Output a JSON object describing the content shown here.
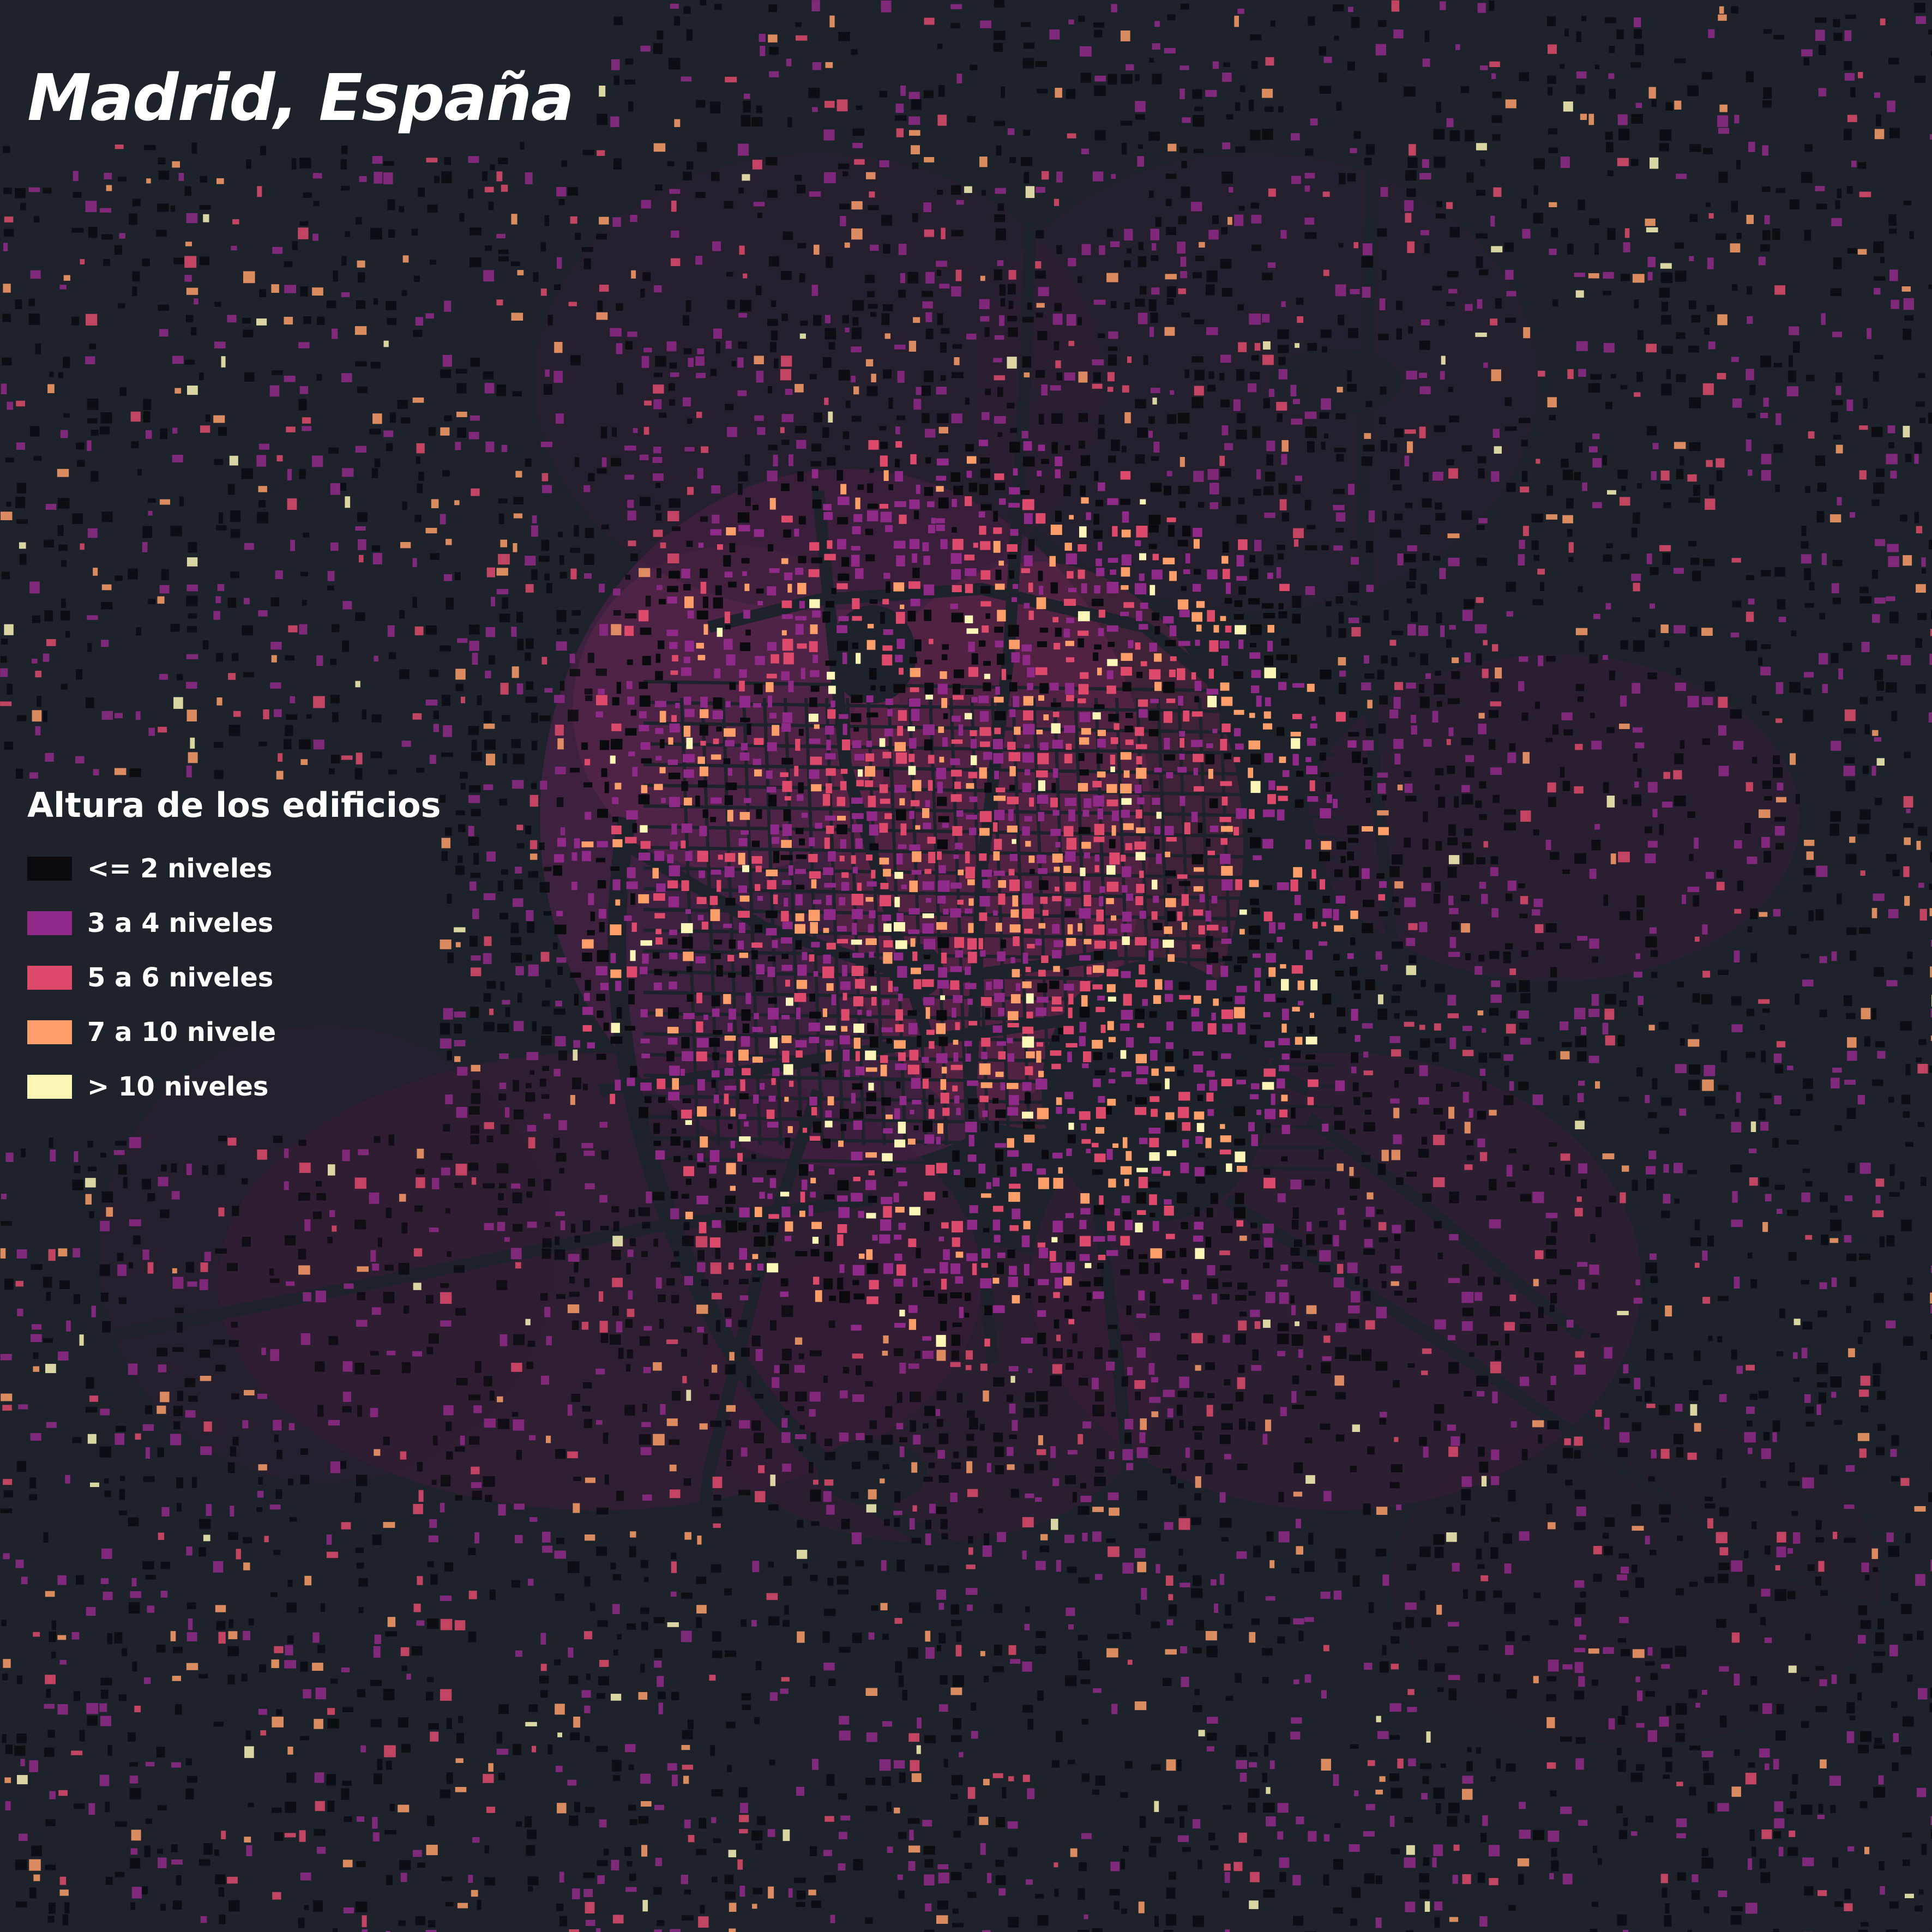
{
  "map": {
    "title": "Madrid, España",
    "background_color": "#1e222a",
    "legend": {
      "title": "Altura de los edificios",
      "items": [
        {
          "label": "<= 2 niveles",
          "color": "#0b0b0f"
        },
        {
          "label": "3 a 4 niveles",
          "color": "#8f2a88"
        },
        {
          "label": "5 a 6 niveles",
          "color": "#de4a6c"
        },
        {
          "label": "7 a 10 nivele",
          "color": "#fb9e6a"
        },
        {
          "label": "> 10 niveles",
          "color": "#fbf6b8"
        }
      ]
    }
  }
}
